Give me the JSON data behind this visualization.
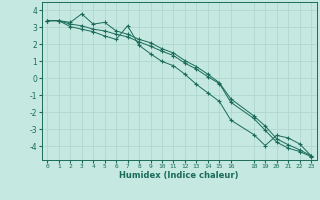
{
  "xlabel": "Humidex (Indice chaleur)",
  "background_color": "#c5e8e0",
  "grid_color": "#b0d8ce",
  "line_color": "#1a6b5a",
  "x_ticks": [
    0,
    1,
    2,
    3,
    4,
    5,
    6,
    7,
    8,
    9,
    10,
    11,
    12,
    13,
    14,
    15,
    16,
    18,
    19,
    20,
    21,
    22,
    23
  ],
  "ylim": [
    -4.8,
    4.5
  ],
  "xlim": [
    -0.5,
    23.5
  ],
  "yticks": [
    -4,
    -3,
    -2,
    -1,
    0,
    1,
    2,
    3,
    4
  ],
  "line1_x": [
    0,
    1,
    2,
    3,
    4,
    5,
    6,
    7,
    8,
    9,
    10,
    11,
    12,
    13,
    14,
    15,
    16,
    18,
    19,
    20,
    21,
    22,
    23
  ],
  "line1_y": [
    3.4,
    3.4,
    3.3,
    3.8,
    3.2,
    3.3,
    2.8,
    2.6,
    2.3,
    2.1,
    1.75,
    1.5,
    1.05,
    0.7,
    0.25,
    -0.25,
    -1.2,
    -2.2,
    -2.8,
    -3.55,
    -3.9,
    -4.2,
    -4.55
  ],
  "line2_x": [
    0,
    1,
    2,
    3,
    4,
    5,
    6,
    7,
    8,
    9,
    10,
    11,
    12,
    13,
    14,
    15,
    16,
    18,
    19,
    20,
    21,
    22,
    23
  ],
  "line2_y": [
    3.4,
    3.4,
    3.2,
    3.1,
    2.9,
    2.8,
    2.6,
    2.45,
    2.15,
    1.9,
    1.6,
    1.35,
    0.9,
    0.55,
    0.1,
    -0.3,
    -1.4,
    -2.35,
    -3.05,
    -3.75,
    -4.1,
    -4.3,
    -4.6
  ],
  "line3_x": [
    0,
    1,
    2,
    3,
    4,
    5,
    6,
    7,
    8,
    9,
    10,
    11,
    12,
    13,
    14,
    15,
    16,
    18,
    19,
    20,
    21,
    22,
    23
  ],
  "line3_y": [
    3.4,
    3.4,
    3.05,
    2.9,
    2.75,
    2.5,
    2.3,
    3.1,
    1.95,
    1.45,
    1.0,
    0.75,
    0.25,
    -0.35,
    -0.85,
    -1.35,
    -2.45,
    -3.3,
    -3.95,
    -3.35,
    -3.5,
    -3.85,
    -4.55
  ]
}
